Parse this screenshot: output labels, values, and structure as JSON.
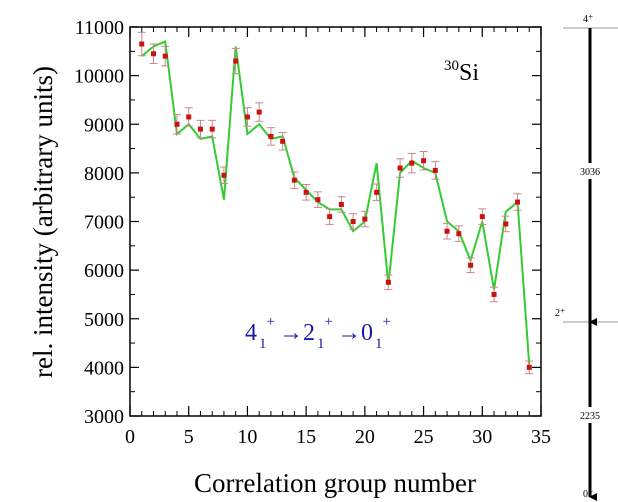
{
  "chart_data": {
    "type": "scatter",
    "xlabel": "Correlation group number",
    "ylabel": "rel. intensity (arbitrary units)",
    "xlim": [
      0,
      35
    ],
    "ylim": [
      3000,
      11000
    ],
    "xticks": [
      0,
      5,
      10,
      15,
      20,
      25,
      30,
      35
    ],
    "yticks": [
      3000,
      4000,
      5000,
      6000,
      7000,
      8000,
      9000,
      10000,
      11000
    ],
    "grid": false,
    "nucleus": {
      "mass": "30",
      "symbol": "Si"
    },
    "transition": {
      "parts": [
        {
          "base": "4",
          "sub": "1",
          "sup": "+"
        },
        {
          "base": "→2",
          "sub": "1",
          "sup": "+"
        },
        {
          "base": "→0",
          "sub": "1",
          "sup": "+"
        }
      ],
      "color": "#1a1aa6"
    },
    "series": [
      {
        "kind": "measured",
        "marker": "square",
        "color": "#cc1111",
        "errorbar_color": "#c88888",
        "x": [
          1,
          2,
          3,
          4,
          5,
          6,
          7,
          8,
          9,
          10,
          11,
          12,
          13,
          14,
          15,
          16,
          17,
          18,
          19,
          20,
          21,
          22,
          23,
          24,
          25,
          26,
          27,
          28,
          29,
          30,
          31,
          32,
          33,
          34
        ],
        "y": [
          10650,
          10450,
          10400,
          9000,
          9150,
          8900,
          8900,
          7950,
          10300,
          9150,
          9250,
          8750,
          8650,
          7850,
          7600,
          7450,
          7100,
          7350,
          7000,
          7050,
          7600,
          5750,
          8100,
          8200,
          8250,
          8050,
          6800,
          6750,
          6100,
          7100,
          5500,
          6950,
          7400,
          4000
        ],
        "err": [
          240,
          200,
          200,
          200,
          190,
          180,
          180,
          170,
          260,
          190,
          190,
          180,
          180,
          170,
          160,
          160,
          160,
          160,
          160,
          160,
          170,
          150,
          190,
          200,
          190,
          180,
          160,
          160,
          150,
          160,
          150,
          160,
          170,
          130
        ]
      },
      {
        "kind": "fit",
        "color": "#33cc33",
        "x": [
          1,
          2,
          3,
          4,
          5,
          6,
          7,
          8,
          9,
          10,
          11,
          12,
          13,
          14,
          15,
          16,
          17,
          18,
          19,
          20,
          21,
          22,
          23,
          24,
          25,
          26,
          27,
          28,
          29,
          30,
          31,
          32,
          33,
          34
        ],
        "y": [
          10400,
          10600,
          10700,
          8800,
          9000,
          8700,
          8750,
          7450,
          10600,
          8800,
          9000,
          8700,
          8750,
          7900,
          7650,
          7400,
          7250,
          7250,
          6800,
          7000,
          8200,
          5700,
          8000,
          8250,
          8100,
          8000,
          7000,
          6800,
          6200,
          7000,
          5600,
          7200,
          7400,
          4050
        ]
      }
    ]
  },
  "level_scheme": {
    "levels": [
      {
        "label": "4⁺",
        "value": 6500
      },
      {
        "label": "2⁺",
        "value": 2235
      },
      {
        "label": "0⁺",
        "value": 0
      }
    ],
    "transitions": [
      {
        "label": "3036"
      },
      {
        "label": "2235"
      }
    ]
  }
}
